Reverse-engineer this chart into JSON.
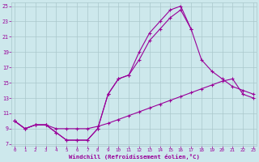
{
  "xlabel": "Windchill (Refroidissement éolien,°C)",
  "x_ticks": [
    0,
    1,
    2,
    3,
    4,
    5,
    6,
    7,
    8,
    9,
    10,
    11,
    12,
    13,
    14,
    15,
    16,
    17,
    18,
    19,
    20,
    21,
    22,
    23
  ],
  "y_ticks": [
    7,
    9,
    11,
    13,
    15,
    17,
    19,
    21,
    23,
    25
  ],
  "xlim": [
    0,
    23
  ],
  "ylim": [
    7,
    25
  ],
  "bg_color": "#cde8ec",
  "line_color": "#990099",
  "grid_color": "#aac8cc",
  "curve1_x": [
    0,
    1,
    2,
    3,
    4,
    5,
    6,
    7,
    8,
    9,
    10,
    11,
    12,
    13,
    14,
    15,
    16,
    17
  ],
  "curve1_y": [
    10.0,
    9.0,
    9.5,
    9.5,
    8.5,
    7.5,
    7.5,
    7.5,
    9.0,
    13.5,
    15.5,
    16.0,
    19.0,
    21.5,
    23.0,
    24.5,
    25.0,
    22.0
  ],
  "curve2_x": [
    0,
    1,
    2,
    3,
    4,
    5,
    6,
    7,
    8,
    9,
    10,
    11,
    12,
    13,
    14,
    15,
    16,
    17,
    18,
    19,
    20,
    21,
    22,
    23
  ],
  "curve2_y": [
    10.0,
    9.0,
    9.5,
    9.5,
    8.5,
    7.5,
    7.5,
    7.5,
    9.0,
    13.5,
    15.5,
    16.0,
    18.0,
    20.5,
    22.0,
    23.5,
    24.5,
    22.0,
    18.0,
    16.5,
    15.5,
    14.5,
    14.0,
    13.5
  ],
  "curve3_x": [
    0,
    1,
    2,
    3,
    4,
    5,
    6,
    7,
    8,
    9,
    10,
    11,
    12,
    13,
    14,
    15,
    16,
    17,
    18,
    19,
    20,
    21,
    22,
    23
  ],
  "curve3_y": [
    10.0,
    9.0,
    9.5,
    9.5,
    9.0,
    9.0,
    9.0,
    9.0,
    9.3,
    9.7,
    10.2,
    10.7,
    11.2,
    11.7,
    12.2,
    12.7,
    13.2,
    13.7,
    14.2,
    14.7,
    15.2,
    15.5,
    13.5,
    13.0
  ]
}
